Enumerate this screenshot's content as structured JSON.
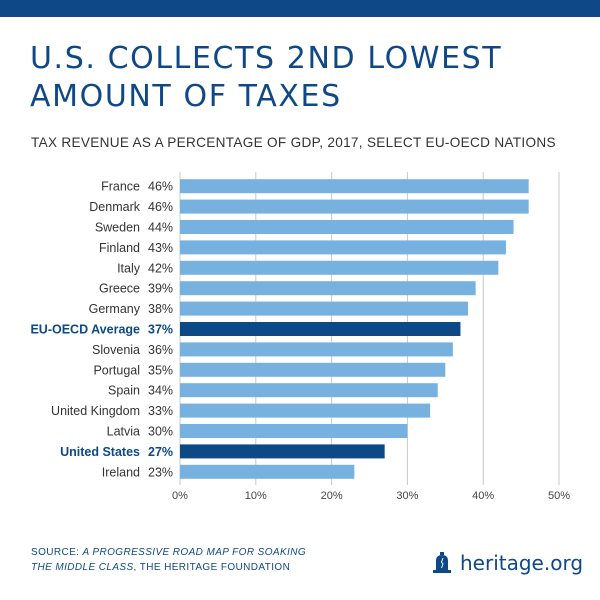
{
  "title_lines": [
    "U.S. COLLECTS 2ND LOWEST",
    "AMOUNT OF TAXES"
  ],
  "subtitle": "TAX REVENUE AS A PERCENTAGE OF GDP, 2017, SELECT EU-OECD NATIONS",
  "colors": {
    "band": "#0f4887",
    "bar": "#77b1e0",
    "highlight": "#0d4a85",
    "grid": "#c9c9c9",
    "text": "#333333"
  },
  "chart_data": {
    "type": "bar",
    "orientation": "horizontal",
    "categories": [
      "France",
      "Denmark",
      "Sweden",
      "Finland",
      "Italy",
      "Greece",
      "Germany",
      "EU-OECD Average",
      "Slovenia",
      "Portugal",
      "Spain",
      "United Kingdom",
      "Latvia",
      "United States",
      "Ireland"
    ],
    "values": [
      46,
      46,
      44,
      43,
      42,
      39,
      38,
      37,
      36,
      35,
      34,
      33,
      30,
      27,
      23
    ],
    "value_labels": [
      "46%",
      "46%",
      "44%",
      "43%",
      "42%",
      "39%",
      "38%",
      "37%",
      "36%",
      "35%",
      "34%",
      "33%",
      "30%",
      "27%",
      "23%"
    ],
    "highlighted": [
      "EU-OECD Average",
      "United States"
    ],
    "xlim": [
      0,
      50
    ],
    "xticks": [
      0,
      10,
      20,
      30,
      40,
      50
    ],
    "xtick_labels": [
      "0%",
      "10%",
      "20%",
      "30%",
      "40%",
      "50%"
    ],
    "grid": true,
    "title": "U.S. COLLECTS 2ND LOWEST AMOUNT OF TAXES",
    "xlabel": "",
    "ylabel": ""
  },
  "source": {
    "prefix": "SOURCE: ",
    "ref_line1": "A PROGRESSIVE ROAD MAP FOR SOAKING",
    "ref_line2": "THE MIDDLE CLASS",
    "suffix": ", THE HERITAGE FOUNDATION"
  },
  "brand": {
    "text": "heritage.org",
    "icon": "liberty-bell-icon"
  }
}
